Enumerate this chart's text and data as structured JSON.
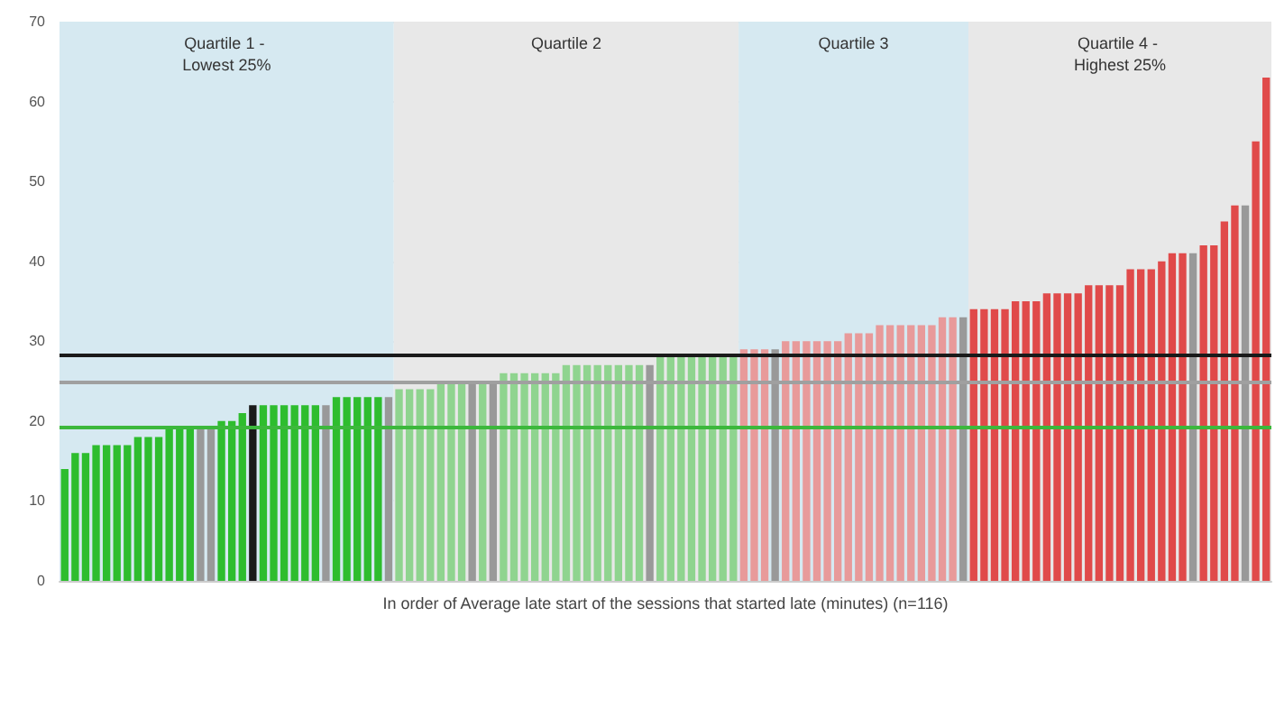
{
  "chart_data": {
    "type": "bar",
    "xlabel": "In order of Average late start of the sessions that started late (minutes) (n=116)",
    "categories": [
      null,
      null,
      null,
      null,
      null,
      null,
      null,
      null,
      null,
      null,
      null,
      null,
      null,
      null,
      null,
      null,
      null,
      null,
      null,
      null,
      null,
      null,
      null,
      null,
      null,
      null,
      null,
      null,
      null,
      null,
      null,
      null,
      null,
      null,
      null,
      null,
      null,
      null,
      null,
      null,
      null,
      null,
      null,
      null,
      null,
      null,
      null,
      null,
      null,
      null,
      null,
      null,
      null,
      null,
      null,
      null,
      null,
      null,
      null,
      null,
      null,
      null,
      null,
      null,
      null,
      null,
      null,
      null,
      null,
      null,
      null,
      null,
      null,
      null,
      null,
      null,
      null,
      null,
      null,
      null,
      null,
      null,
      null,
      null,
      null,
      null,
      null,
      null,
      null,
      null,
      null,
      null,
      null,
      null,
      null,
      null,
      null,
      null,
      null,
      null,
      null,
      null,
      null,
      null,
      null,
      null,
      null,
      null,
      null,
      null,
      null,
      null,
      null,
      null,
      null,
      null
    ],
    "values": [
      14,
      16,
      16,
      17,
      17,
      17,
      17,
      18,
      18,
      18,
      19,
      19,
      19,
      19,
      19,
      20,
      20,
      21,
      22,
      22,
      22,
      22,
      22,
      22,
      22,
      22,
      23,
      23,
      23,
      23,
      23,
      23,
      24,
      24,
      24,
      24,
      25,
      25,
      25,
      25,
      25,
      25,
      26,
      26,
      26,
      26,
      26,
      26,
      27,
      27,
      27,
      27,
      27,
      27,
      27,
      27,
      27,
      28,
      28,
      28,
      28,
      28,
      28,
      28,
      28,
      29,
      29,
      29,
      29,
      30,
      30,
      30,
      30,
      30,
      30,
      31,
      31,
      31,
      32,
      32,
      32,
      32,
      32,
      32,
      33,
      33,
      33,
      34,
      34,
      34,
      34,
      35,
      35,
      35,
      36,
      36,
      36,
      36,
      37,
      37,
      37,
      37,
      39,
      39,
      39,
      40,
      41,
      41,
      41,
      42,
      42,
      45,
      47,
      47,
      55,
      63
    ],
    "colors": [
      "#2ebd2e",
      "#2ebd2e",
      "#2ebd2e",
      "#2ebd2e",
      "#2ebd2e",
      "#2ebd2e",
      "#2ebd2e",
      "#2ebd2e",
      "#2ebd2e",
      "#2ebd2e",
      "#2ebd2e",
      "#2ebd2e",
      "#2ebd2e",
      "#999999",
      "#999999",
      "#2ebd2e",
      "#2ebd2e",
      "#2ebd2e",
      "#1a1a1a",
      "#2ebd2e",
      "#2ebd2e",
      "#2ebd2e",
      "#2ebd2e",
      "#2ebd2e",
      "#2ebd2e",
      "#999999",
      "#2ebd2e",
      "#2ebd2e",
      "#2ebd2e",
      "#2ebd2e",
      "#2ebd2e",
      "#999999",
      "#8fd48f",
      "#8fd48f",
      "#8fd48f",
      "#8fd48f",
      "#8fd48f",
      "#8fd48f",
      "#8fd48f",
      "#999999",
      "#8fd48f",
      "#999999",
      "#8fd48f",
      "#8fd48f",
      "#8fd48f",
      "#8fd48f",
      "#8fd48f",
      "#8fd48f",
      "#8fd48f",
      "#8fd48f",
      "#8fd48f",
      "#8fd48f",
      "#8fd48f",
      "#8fd48f",
      "#8fd48f",
      "#8fd48f",
      "#999999",
      "#8fd48f",
      "#8fd48f",
      "#8fd48f",
      "#8fd48f",
      "#8fd48f",
      "#8fd48f",
      "#8fd48f",
      "#8fd48f",
      "#e89a9a",
      "#e89a9a",
      "#e89a9a",
      "#999999",
      "#e89a9a",
      "#e89a9a",
      "#e89a9a",
      "#e89a9a",
      "#e89a9a",
      "#e89a9a",
      "#e89a9a",
      "#e89a9a",
      "#e89a9a",
      "#e89a9a",
      "#e89a9a",
      "#e89a9a",
      "#e89a9a",
      "#e89a9a",
      "#e89a9a",
      "#e89a9a",
      "#e89a9a",
      "#999999",
      "#e04a4a",
      "#e04a4a",
      "#e04a4a",
      "#e04a4a",
      "#e04a4a",
      "#e04a4a",
      "#e04a4a",
      "#e04a4a",
      "#e04a4a",
      "#e04a4a",
      "#e04a4a",
      "#e04a4a",
      "#e04a4a",
      "#e04a4a",
      "#e04a4a",
      "#e04a4a",
      "#e04a4a",
      "#e04a4a",
      "#e04a4a",
      "#e04a4a",
      "#e04a4a",
      "#999999",
      "#e04a4a",
      "#e04a4a",
      "#e04a4a",
      "#e04a4a",
      "#999999",
      "#e04a4a",
      "#e04a4a"
    ],
    "ylim": [
      0,
      70
    ],
    "yticks": [
      0,
      10,
      20,
      30,
      40,
      50,
      60,
      70
    ],
    "grid": "y",
    "tick_labels": "y",
    "annotations": [
      "Quartile 1 - Lowest 25%",
      "Quartile 2",
      "Quartile 3",
      "Quartile 4 - Highest 25%"
    ],
    "ref_lines": [
      {
        "axis": "y",
        "value": 28.2,
        "color": "#1a1a1a"
      },
      {
        "axis": "y",
        "value": 25,
        "color": "#a0a0a0"
      },
      {
        "axis": "y",
        "value": 19.2,
        "color": "#3cb83c"
      }
    ]
  }
}
